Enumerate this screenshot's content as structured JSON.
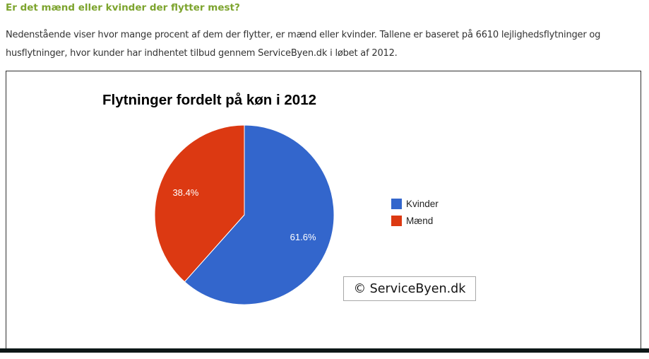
{
  "page": {
    "heading": "Er det mænd eller kvinder der flytter mest?",
    "heading_color": "#7DA42E",
    "intro": "Nedenstående viser hvor mange procent af dem der flytter, er mænd eller kvinder. Tallene er baseret på 6610 lejlighedsflytninger og husflytninger, hvor kunder har indhentet tilbud gennem ServiceByen.dk i løbet af 2012."
  },
  "chart_data": {
    "type": "pie",
    "title": "Flytninger fordelt på køn i 2012",
    "categories": [
      "Kvinder",
      "Mænd"
    ],
    "values": [
      61.6,
      38.4
    ],
    "labels": [
      "61.6%",
      "38.4%"
    ],
    "colors": [
      "#3366CC",
      "#DC3912"
    ],
    "start_angle_deg": 0,
    "direction": "clockwise",
    "legend_position": "right",
    "slice_label_color": "#ffffff"
  },
  "watermark": {
    "text": "© ServiceByen.dk"
  },
  "footer": {
    "bar_color": "#0d1717"
  }
}
